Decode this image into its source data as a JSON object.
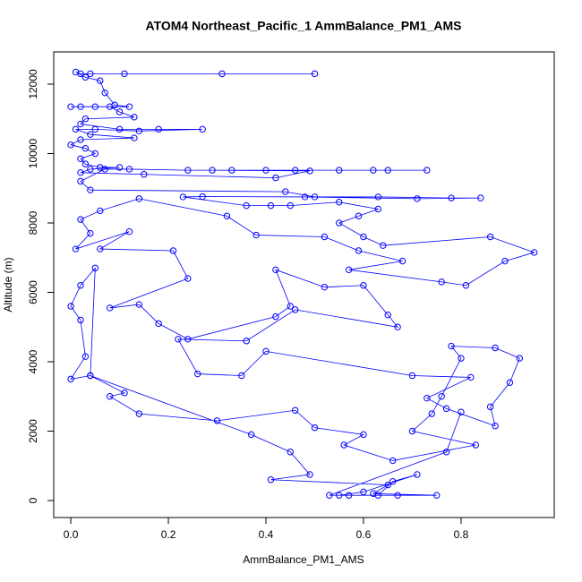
{
  "chart_data": {
    "type": "scatter",
    "title": "ATOM4 Northeast_Pacific_1 AmmBalance_PM1_AMS",
    "xlabel": "AmmBalance_PM1_AMS",
    "ylabel": "Altitude (m)",
    "color": "#0000ff",
    "line": true,
    "xlim": [
      -0.035,
      0.991
    ],
    "ylim": [
      -490,
      12929
    ],
    "xticks": [
      {
        "value": 0,
        "label": "0.0"
      },
      0.2,
      0.4,
      0.6,
      0.8
    ],
    "yticks": [
      0,
      2000,
      4000,
      6000,
      8000,
      10000,
      12000
    ],
    "x": [
      0.5,
      0.31,
      0.11,
      0.04,
      0.02,
      0.01,
      0.03,
      0.06,
      0.07,
      0.09,
      0.12,
      0.02,
      0.0,
      0.05,
      0.08,
      0.1,
      0.13,
      0.03,
      0.02,
      0.1,
      0.18,
      0.27,
      0.14,
      0.05,
      0.01,
      0.04,
      0.13,
      0.02,
      0.0,
      0.03,
      0.05,
      0.02,
      0.03,
      0.06,
      0.1,
      0.04,
      0.02,
      0.15,
      0.42,
      0.49,
      0.29,
      0.4,
      0.55,
      0.65,
      0.73,
      0.62,
      0.46,
      0.33,
      0.24,
      0.12,
      0.07,
      0.02,
      0.04,
      0.44,
      0.5,
      0.63,
      0.78,
      0.84,
      0.71,
      0.48,
      0.27,
      0.23,
      0.36,
      0.41,
      0.45,
      0.55,
      0.63,
      0.59,
      0.55,
      0.6,
      0.64,
      0.86,
      0.95,
      0.89,
      0.81,
      0.76,
      0.57,
      0.68,
      0.59,
      0.52,
      0.38,
      0.32,
      0.14,
      0.06,
      0.02,
      0.04,
      0.01,
      0.12,
      0.06,
      0.21,
      0.24,
      0.08,
      0.14,
      0.18,
      0.24,
      0.42,
      0.45,
      0.42,
      0.52,
      0.6,
      0.65,
      0.67,
      0.46,
      0.36,
      0.22,
      0.26,
      0.35,
      0.4,
      0.7,
      0.82,
      0.73,
      0.77,
      0.87,
      0.86,
      0.9,
      0.92,
      0.87,
      0.78,
      0.8,
      0.76,
      0.74,
      0.7,
      0.83,
      0.66,
      0.56,
      0.6,
      0.5,
      0.46,
      0.3,
      0.14,
      0.08,
      0.11,
      0.04,
      0.0,
      0.03,
      0.02,
      0.0,
      0.02,
      0.05,
      0.04,
      0.37,
      0.45,
      0.49,
      0.41,
      0.65,
      0.62,
      0.75,
      0.67,
      0.55,
      0.6,
      0.71,
      0.66,
      0.63,
      0.57,
      0.53,
      0.77,
      0.8
    ],
    "values": [
      12300,
      12300,
      12300,
      12300,
      12300,
      12350,
      12200,
      12100,
      11750,
      11400,
      11350,
      11350,
      11350,
      11350,
      11350,
      11200,
      11050,
      11000,
      10850,
      10700,
      10700,
      10700,
      10650,
      10700,
      10700,
      10550,
      10450,
      10400,
      10250,
      10150,
      10000,
      9850,
      9700,
      9600,
      9600,
      9550,
      9450,
      9400,
      9300,
      9500,
      9520,
      9520,
      9520,
      9520,
      9520,
      9520,
      9520,
      9520,
      9520,
      9550,
      9550,
      9200,
      8950,
      8900,
      8750,
      8750,
      8720,
      8720,
      8700,
      8750,
      8760,
      8750,
      8500,
      8500,
      8500,
      8600,
      8400,
      8200,
      8000,
      7600,
      7350,
      7600,
      7150,
      6900,
      6200,
      6300,
      6650,
      6900,
      7200,
      7600,
      7650,
      8200,
      8700,
      8350,
      8100,
      7700,
      7250,
      7750,
      7250,
      7200,
      6400,
      5550,
      5650,
      5100,
      4650,
      5300,
      5600,
      6650,
      6150,
      6200,
      5350,
      5000,
      5500,
      4600,
      4650,
      3650,
      3600,
      4300,
      3600,
      3550,
      2950,
      2650,
      2150,
      2700,
      3400,
      4100,
      4400,
      4450,
      4100,
      3000,
      2500,
      2000,
      1600,
      1150,
      1600,
      1900,
      2100,
      2600,
      2300,
      2500,
      3000,
      3100,
      3600,
      3500,
      4150,
      5200,
      5600,
      6200,
      6700,
      3600,
      1900,
      1400,
      750,
      600,
      450,
      200,
      150,
      150,
      150,
      250,
      750,
      550,
      150,
      150,
      150,
      1400,
      2550
    ]
  }
}
